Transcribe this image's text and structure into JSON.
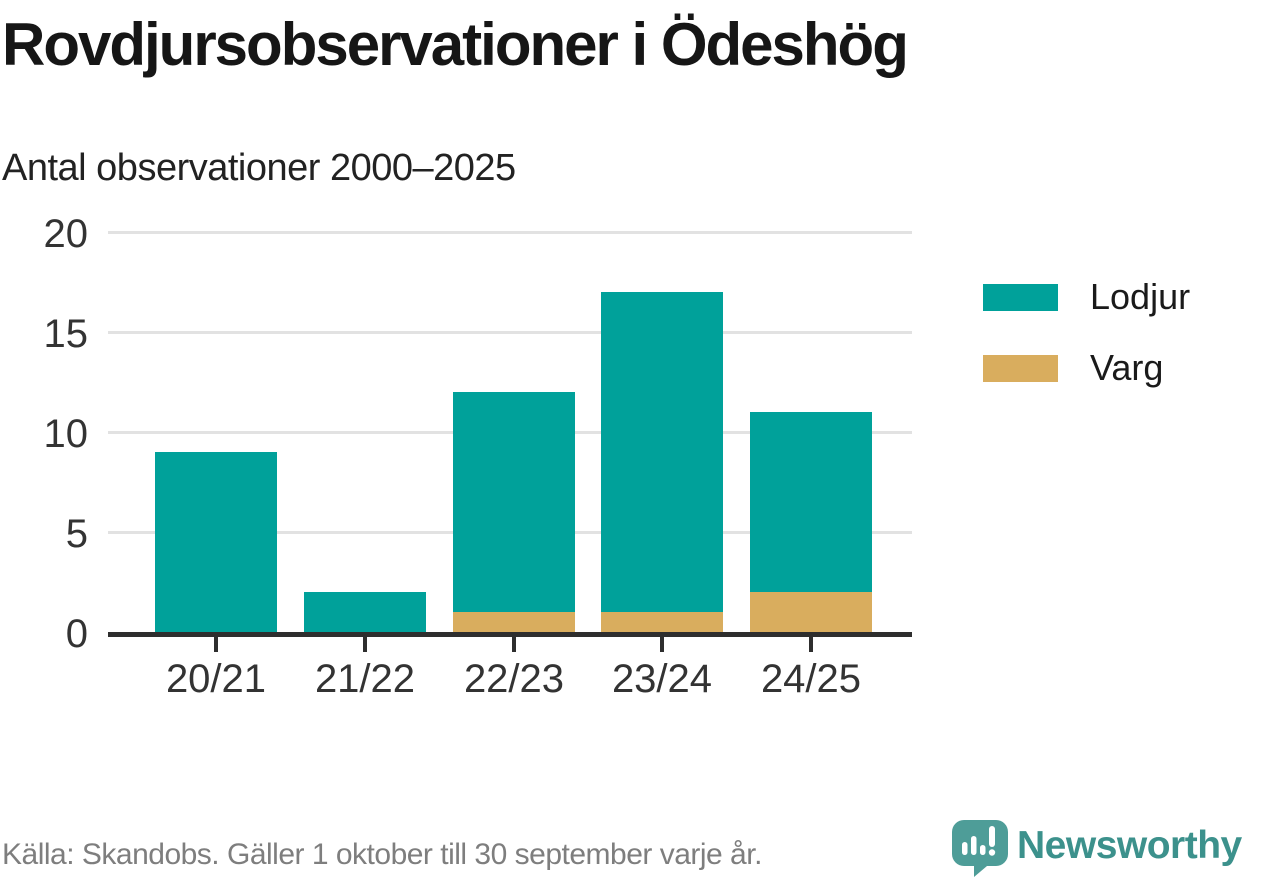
{
  "title": "Rovdjursobservationer i Ödeshög",
  "subtitle": "Antal observationer 2000–2025",
  "chart_data": {
    "type": "bar",
    "stacked": true,
    "categories": [
      "20/21",
      "21/22",
      "22/23",
      "23/24",
      "24/25"
    ],
    "series": [
      {
        "name": "Lodjur",
        "color": "#00a19a",
        "values": [
          9,
          2,
          11,
          16,
          9
        ]
      },
      {
        "name": "Varg",
        "color": "#d9ad5e",
        "values": [
          0,
          0,
          1,
          1,
          2
        ]
      }
    ],
    "stack_totals": [
      9,
      2,
      12,
      17,
      11
    ],
    "ylim": [
      0,
      20
    ],
    "yticks": [
      0,
      5,
      10,
      15,
      20
    ],
    "grid": "horizontal",
    "legend_position": "right"
  },
  "footer": {
    "source": "Källa: Skandobs. Gäller 1 oktober till 30 september varje år.",
    "brand": "Newsworthy"
  },
  "colors": {
    "bar_lodjur": "#00a19a",
    "bar_varg": "#d9ad5e",
    "axis_line": "#2e2e2e",
    "gridline": "#e2e2e2",
    "title_text": "#161616",
    "tick_label": "#333333",
    "source_text": "#7e7e7e",
    "brand_teal": "#3c918c",
    "icon_teal": "#4e9d98"
  }
}
